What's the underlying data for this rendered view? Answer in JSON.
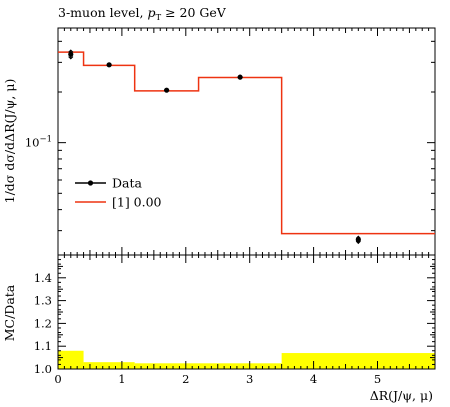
{
  "chart_data": [
    {
      "type": "step",
      "panel": "main",
      "title": "3-muon level, p_T ≥ 20 GeV",
      "title_parts": {
        "pre": "3-muon level, ",
        "p": "p",
        "sub": "T",
        "post": " ≥ 20 GeV"
      },
      "ylabel": "1/dσ dσ/dΔR(J/ψ, μ)",
      "yscale": "log",
      "ylim": [
        0.0215,
        0.48
      ],
      "xlim": [
        0,
        5.9
      ],
      "y_tick_labels": [
        {
          "value": 0.1,
          "base": "10",
          "exp": "−1"
        }
      ],
      "legend_position": "center-left",
      "legend": [
        {
          "label": "Data",
          "style": "marker-line",
          "color": "#000000"
        },
        {
          "label": "[1] 0.00",
          "style": "line",
          "color": "#ee3311"
        }
      ],
      "series": [
        {
          "name": "Data",
          "type": "points",
          "x": [
            0.2,
            0.8,
            1.7,
            2.85,
            4.7
          ],
          "y": [
            0.335,
            0.29,
            0.205,
            0.245,
            0.0265
          ],
          "yerr": [
            0.02,
            0.006,
            0.004,
            0.005,
            0.0013
          ],
          "color": "#000000"
        },
        {
          "name": "[1] 0.00",
          "type": "step",
          "edges": [
            0,
            0.4,
            1.2,
            2.2,
            3.5,
            5.9
          ],
          "values": [
            0.345,
            0.288,
            0.203,
            0.244,
            0.0288
          ],
          "color": "#ee3311"
        }
      ]
    },
    {
      "type": "area",
      "panel": "ratio",
      "ylabel": "MC/Data",
      "xlabel": "ΔR(J/ψ, μ)",
      "xlim": [
        0,
        5.9
      ],
      "ylim": [
        1.0,
        1.5
      ],
      "x_ticks": [
        0,
        1,
        2,
        3,
        4,
        5
      ],
      "y_ticks": [
        1.0,
        1.1,
        1.2,
        1.3,
        1.4
      ],
      "y_tick_labels": [
        "1.0",
        "1.1",
        "1.2",
        "1.3",
        "1.4"
      ],
      "x_tick_labels": [
        "0",
        "1",
        "2",
        "3",
        "4",
        "5"
      ],
      "band_color": "#ffff00",
      "band": {
        "edges": [
          0,
          0.4,
          1.2,
          2.2,
          3.5,
          5.9
        ],
        "upper": [
          1.08,
          1.03,
          1.025,
          1.025,
          1.07
        ],
        "lower": [
          1.0,
          1.0,
          1.0,
          1.0,
          1.0
        ]
      },
      "reference_line": 1.0
    }
  ]
}
